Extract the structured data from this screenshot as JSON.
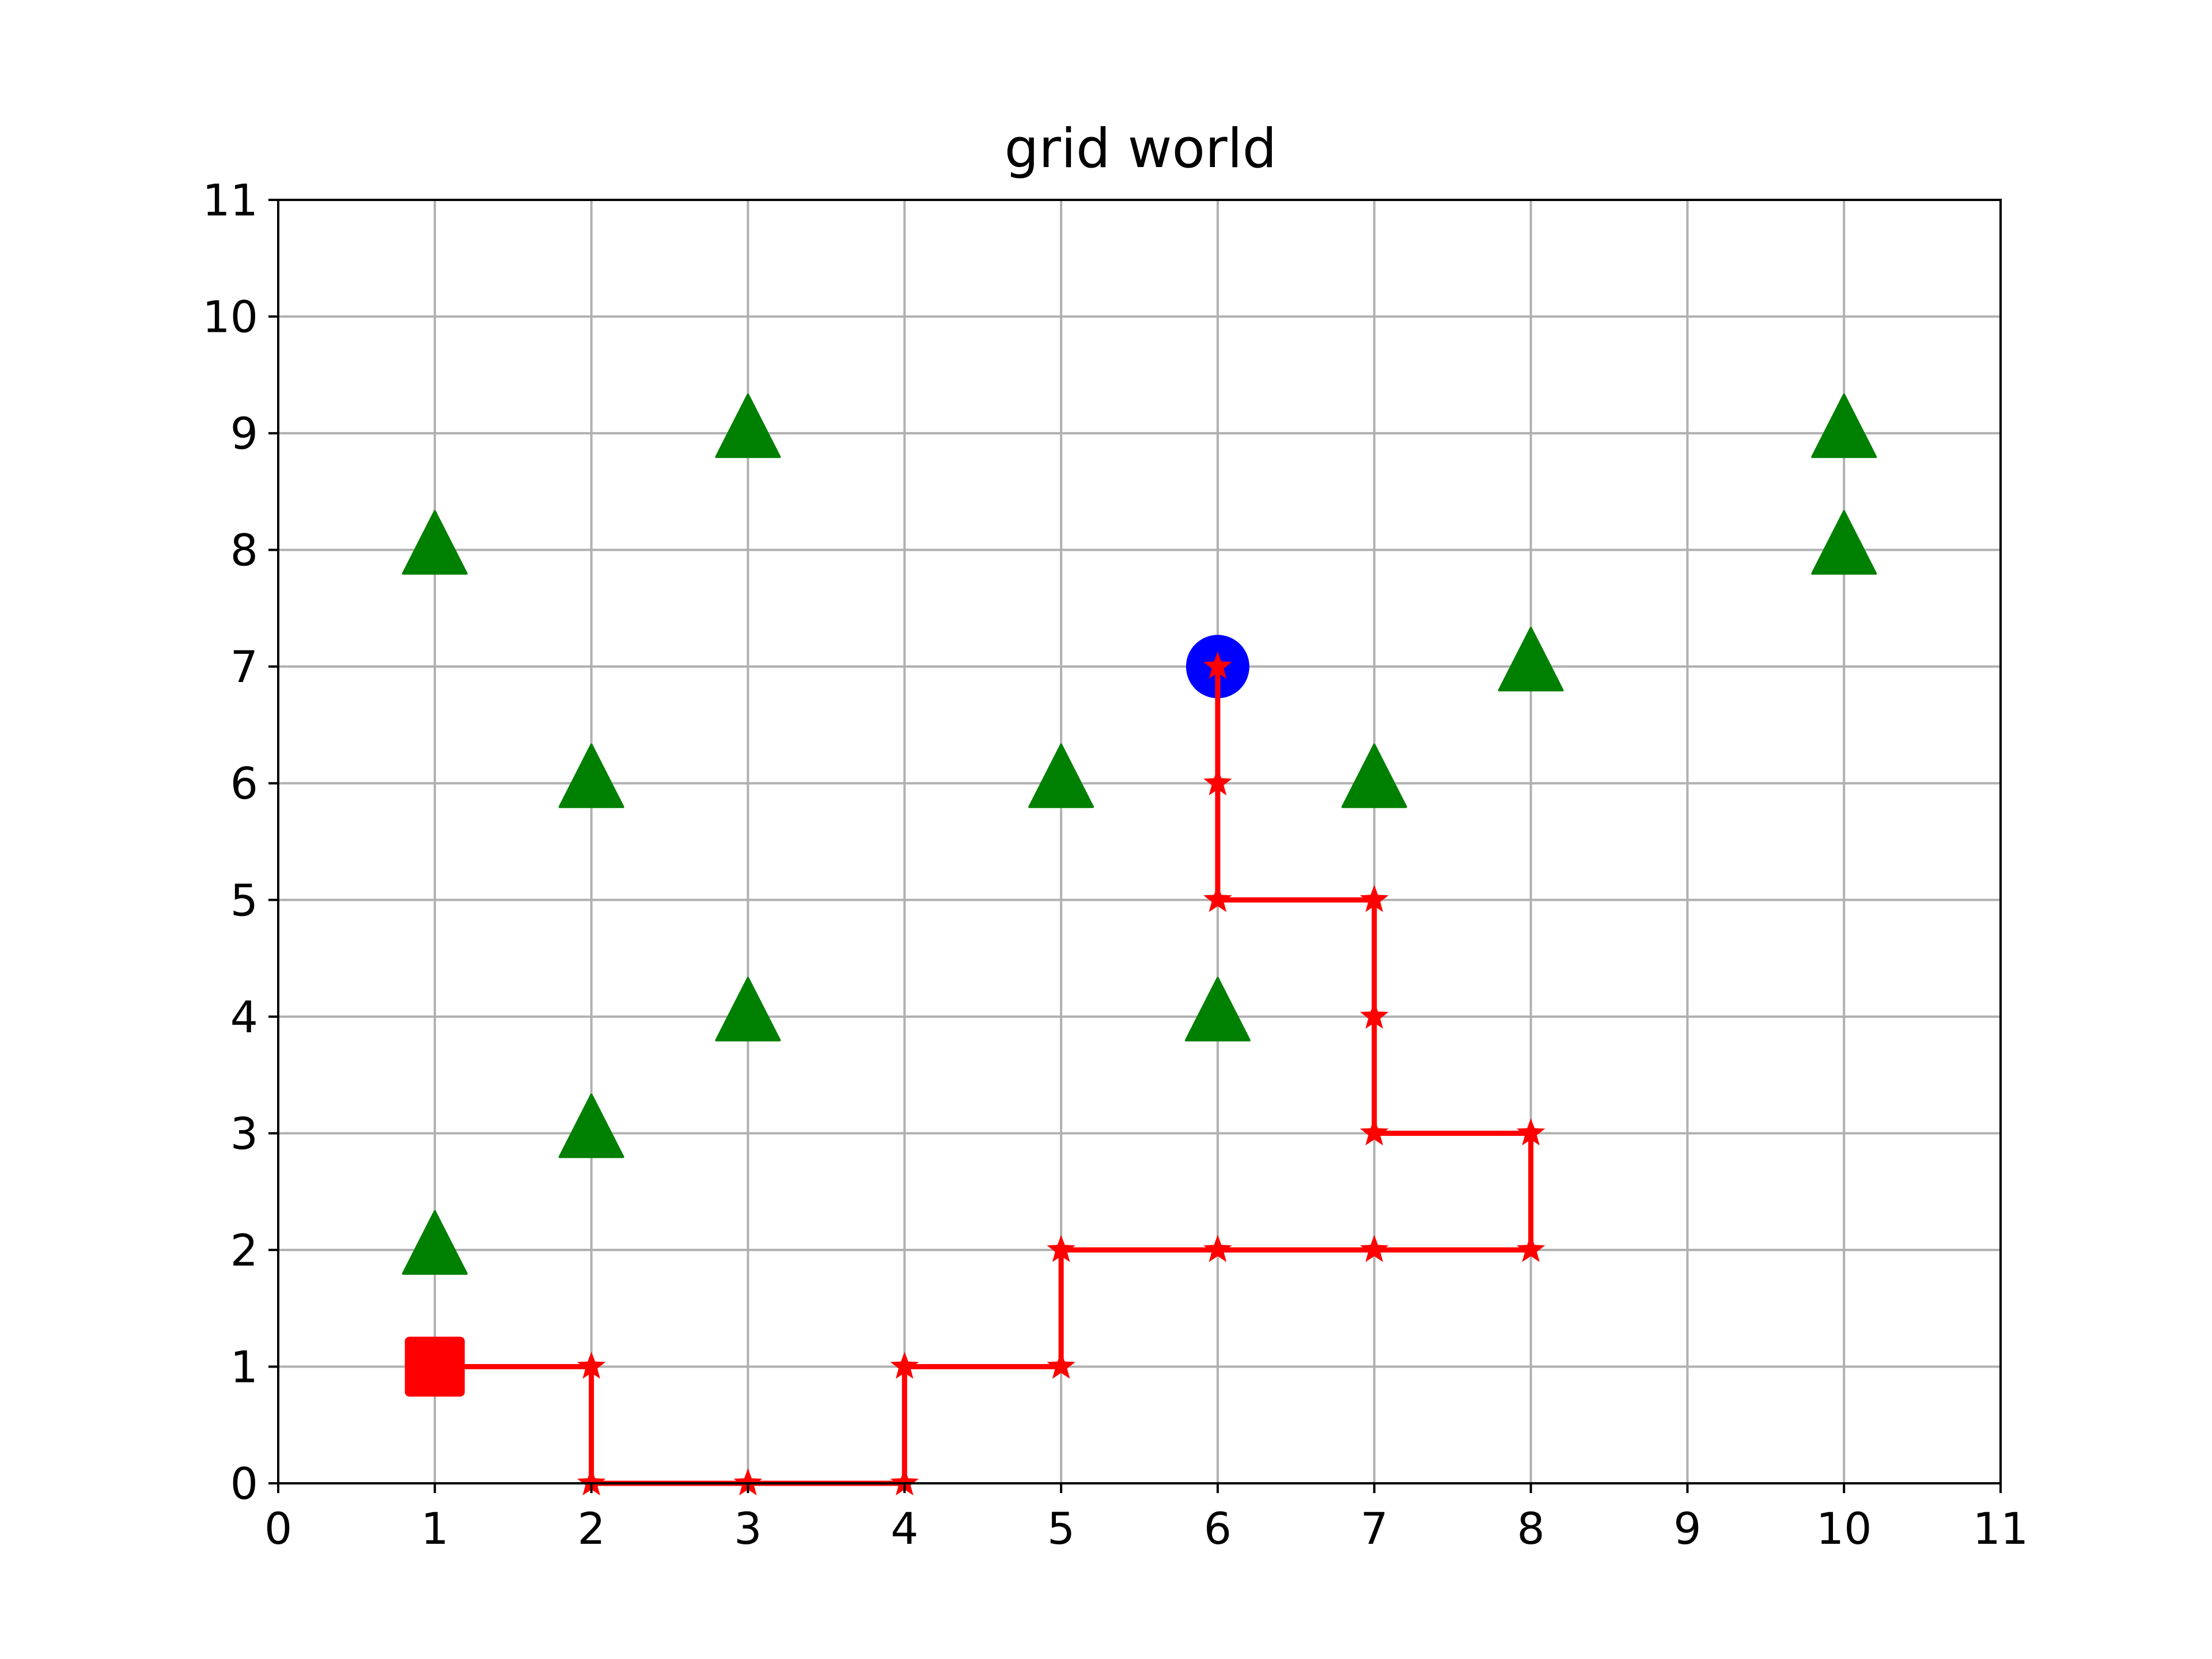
{
  "chart_data": {
    "type": "scatter",
    "title": "grid world",
    "xlabel": "",
    "ylabel": "",
    "xlim": [
      0,
      11
    ],
    "ylim": [
      0,
      11
    ],
    "xticks": [
      0,
      1,
      2,
      3,
      4,
      5,
      6,
      7,
      8,
      9,
      10,
      11
    ],
    "yticks": [
      0,
      1,
      2,
      3,
      4,
      5,
      6,
      7,
      8,
      9,
      10,
      11
    ],
    "grid": true,
    "series": [
      {
        "role": "path",
        "marker": "star",
        "line": "solid",
        "color": "#ff0000",
        "points": [
          [
            1,
            1
          ],
          [
            2,
            1
          ],
          [
            2,
            0
          ],
          [
            3,
            0
          ],
          [
            4,
            0
          ],
          [
            4,
            1
          ],
          [
            5,
            1
          ],
          [
            5,
            2
          ],
          [
            6,
            2
          ],
          [
            7,
            2
          ],
          [
            8,
            2
          ],
          [
            8,
            3
          ],
          [
            7,
            3
          ],
          [
            7,
            4
          ],
          [
            7,
            5
          ],
          [
            6,
            5
          ],
          [
            6,
            6
          ],
          [
            6,
            7
          ]
        ]
      },
      {
        "role": "start",
        "marker": "square",
        "color": "#ff0000",
        "points": [
          [
            1,
            1
          ]
        ]
      },
      {
        "role": "goal",
        "marker": "circle",
        "color": "#0000ff",
        "points": [
          [
            6,
            7
          ]
        ]
      },
      {
        "role": "obstacles",
        "marker": "triangle",
        "color": "#008000",
        "points": [
          [
            1,
            8
          ],
          [
            3,
            9
          ],
          [
            10,
            9
          ],
          [
            10,
            8
          ],
          [
            8,
            7
          ],
          [
            2,
            6
          ],
          [
            5,
            6
          ],
          [
            7,
            6
          ],
          [
            3,
            4
          ],
          [
            6,
            4
          ],
          [
            2,
            3
          ],
          [
            1,
            2
          ]
        ]
      }
    ]
  }
}
